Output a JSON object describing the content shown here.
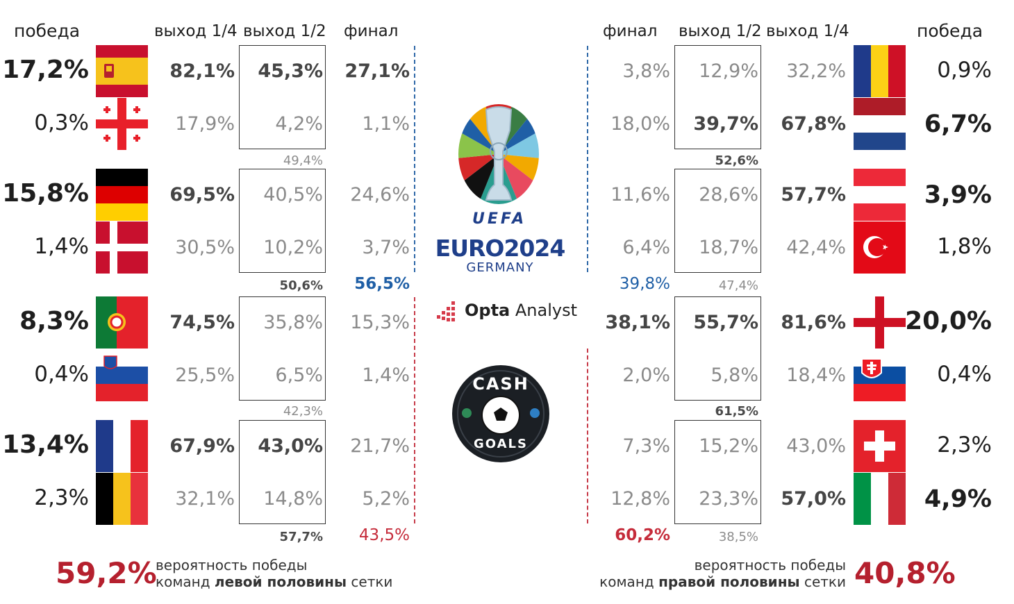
{
  "headers": {
    "left": {
      "win": "победа",
      "qf": "выход 1/4",
      "sf": "выход 1/2",
      "final": "финал"
    },
    "right": {
      "final": "финал",
      "sf": "выход 1/2",
      "qf": "выход 1/4",
      "win": "победа"
    }
  },
  "left_teams": [
    {
      "flag": "spain",
      "win": "17,2%",
      "qf": "82,1%",
      "sf": "45,3%",
      "final": "27,1%"
    },
    {
      "flag": "georgia",
      "win": "0,3%",
      "qf": "17,9%",
      "sf": "4,2%",
      "final": "1,1%"
    },
    {
      "flag": "germany",
      "win": "15,8%",
      "qf": "69,5%",
      "sf": "40,5%",
      "final": "24,6%"
    },
    {
      "flag": "denmark",
      "win": "1,4%",
      "qf": "30,5%",
      "sf": "10,2%",
      "final": "3,7%"
    },
    {
      "flag": "portugal",
      "win": "8,3%",
      "qf": "74,5%",
      "sf": "35,8%",
      "final": "15,3%"
    },
    {
      "flag": "slovenia",
      "win": "0,4%",
      "qf": "25,5%",
      "sf": "6,5%",
      "final": "1,4%"
    },
    {
      "flag": "france",
      "win": "13,4%",
      "qf": "67,9%",
      "sf": "43,0%",
      "final": "21,7%"
    },
    {
      "flag": "belgium",
      "win": "2,3%",
      "qf": "32,1%",
      "sf": "14,8%",
      "final": "5,2%"
    }
  ],
  "right_teams": [
    {
      "flag": "romania",
      "win": "0,9%",
      "qf": "32,2%",
      "sf": "12,9%",
      "final": "3,8%"
    },
    {
      "flag": "netherlands",
      "win": "6,7%",
      "qf": "67,8%",
      "sf": "39,7%",
      "final": "18,0%"
    },
    {
      "flag": "austria",
      "win": "3,9%",
      "qf": "57,7%",
      "sf": "28,6%",
      "final": "11,6%"
    },
    {
      "flag": "turkey",
      "win": "1,8%",
      "qf": "42,4%",
      "sf": "18,7%",
      "final": "6,4%"
    },
    {
      "flag": "england",
      "win": "20,0%",
      "qf": "81,6%",
      "sf": "55,7%",
      "final": "38,1%"
    },
    {
      "flag": "slovakia",
      "win": "0,4%",
      "qf": "18,4%",
      "sf": "5,8%",
      "final": "2,0%"
    },
    {
      "flag": "switzerland",
      "win": "2,3%",
      "qf": "43,0%",
      "sf": "15,2%",
      "final": "7,3%"
    },
    {
      "flag": "italy",
      "win": "4,9%",
      "qf": "57,0%",
      "sf": "23,3%",
      "final": "12,8%"
    }
  ],
  "left_pairs": [
    "49,4%",
    "50,6%",
    "42,3%",
    "57,7%"
  ],
  "right_pairs": [
    "52,6%",
    "47,4%",
    "61,5%",
    "38,5%"
  ],
  "left_halves": {
    "top": "56,5%",
    "bottom": "43,5%"
  },
  "right_halves": {
    "top": "39,8%",
    "bottom": "60,2%"
  },
  "bottom": {
    "left_pct": "59,2%",
    "left_line1": "вероятность победы",
    "left_line2_pre": "команд ",
    "left_line2_bold": "левой половины",
    "left_line2_post": " сетки",
    "right_pct": "40,8%",
    "right_line1": "вероятность победы",
    "right_line2_pre": "команд ",
    "right_line2_bold": "правой половины",
    "right_line2_post": " сетки"
  },
  "logos": {
    "uefa": "UEFA",
    "euro": "EURO2024",
    "germany": "GERMANY",
    "opta_bold": "Opta",
    "opta_rest": " Analyst",
    "cash": "CASH",
    "goals": "GOALS"
  },
  "colors": {
    "red": "#b5202e",
    "blue": "#1f5fa6",
    "dark": "#1e1e1e"
  }
}
